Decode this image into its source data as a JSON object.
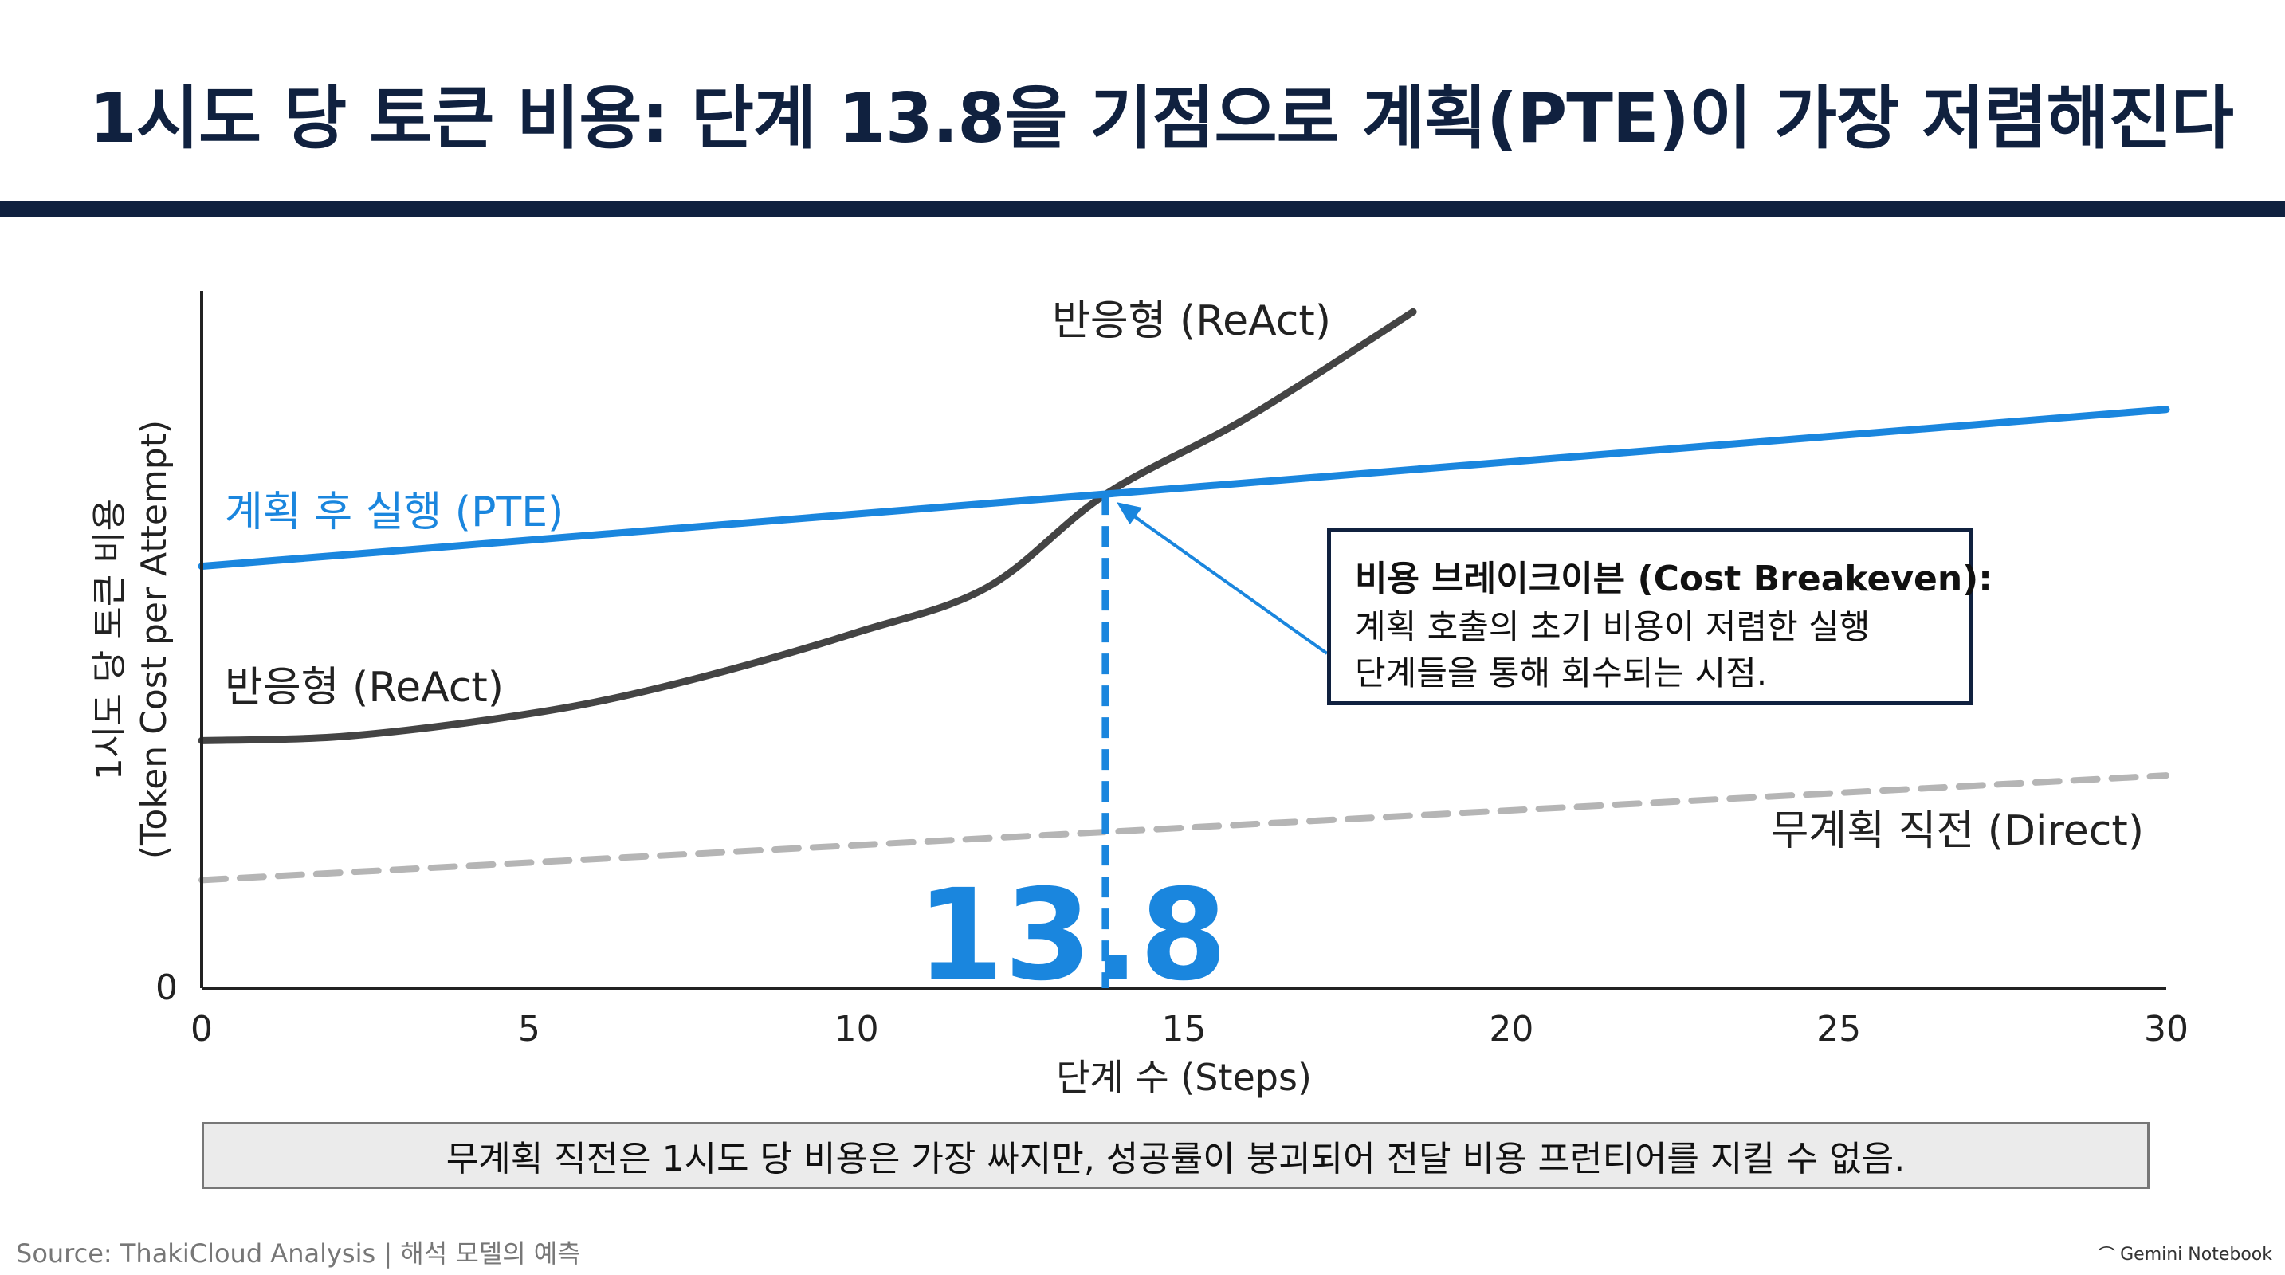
{
  "title": "1시도 당 토큰 비용: 단계 13.8을 기점으로 계획(PTE)이 가장 저렴해진다",
  "chart_data": {
    "type": "line",
    "xlabel": "단계 수 (Steps)",
    "ylabel_line1": "1시도 당 토큰 비용",
    "ylabel_line2": "(Token Cost per Attempt)",
    "xlim": [
      0,
      30
    ],
    "x_ticks": [
      "0",
      "5",
      "10",
      "15",
      "20",
      "25",
      "30"
    ],
    "y_tick_zero": "0",
    "ylim": [
      0,
      1
    ],
    "series": [
      {
        "name": "계획 후 실행 (PTE)",
        "color": "#1a86de",
        "style": "solid",
        "x": [
          0,
          30
        ],
        "y": [
          0.605,
          0.83
        ]
      },
      {
        "name": "반응형 (ReAct)",
        "color": "#444444",
        "style": "solid",
        "x": [
          0,
          2,
          4,
          6,
          8,
          10,
          12,
          13.8,
          16,
          18.5
        ],
        "y": [
          0.355,
          0.36,
          0.38,
          0.41,
          0.455,
          0.51,
          0.575,
          0.708,
          0.82,
          0.97
        ]
      },
      {
        "name": "무계획 직전 (Direct)",
        "color": "#b5b5b5",
        "style": "dashed",
        "x": [
          0,
          30
        ],
        "y": [
          0.155,
          0.305
        ]
      }
    ],
    "breakeven": {
      "x": 13.8,
      "label": "13.8"
    },
    "callout": {
      "title": "비용 브레이크이븐 (Cost Breakeven):",
      "lines": [
        "계획 호출의 초기 비용이 저렴한 실행",
        "단계들을 통해 회수되는 시점."
      ]
    },
    "annotations": {
      "pte_label": "계획 후 실행 (PTE)",
      "react_label_low": "반응형 (ReAct)",
      "react_label_high": "반응형 (ReAct)",
      "direct_label": "무계획 직전 (Direct)"
    }
  },
  "footnote": "무계획 직전은 1시도 당 비용은 가장 싸지만, 성공률이 붕괴되어 전달 비용 프런티어를 지킬 수 없음.",
  "source": "Source: ThakiCloud Analysis | 해석 모델의 예측",
  "brand": "Gemini Notebook",
  "colors": {
    "navy": "#10213f",
    "pte_blue": "#1a86de",
    "react_gray": "#444444",
    "direct_gray": "#b5b5b5"
  }
}
